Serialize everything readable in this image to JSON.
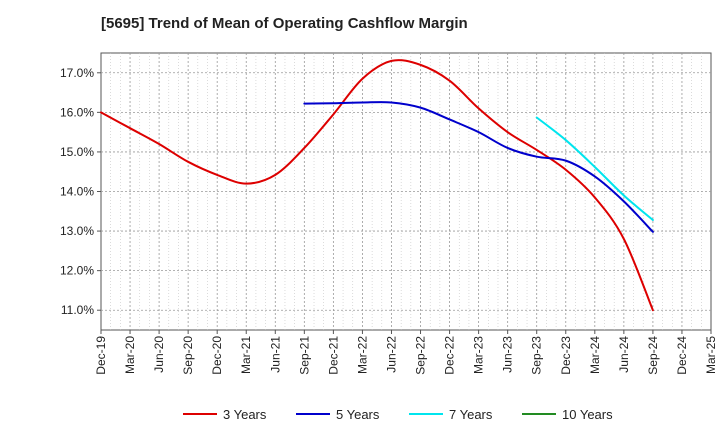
{
  "chart_data": {
    "type": "line",
    "title": "[5695]  Trend of Mean of Operating Cashflow Margin",
    "xlabel": "",
    "ylabel": "",
    "ylim": [
      10.5,
      17.5
    ],
    "y_ticks": [
      11.0,
      12.0,
      13.0,
      14.0,
      15.0,
      16.0,
      17.0
    ],
    "y_tick_labels": [
      "11.0%",
      "12.0%",
      "13.0%",
      "14.0%",
      "15.0%",
      "16.0%",
      "17.0%"
    ],
    "categories": [
      "Dec-19",
      "Mar-20",
      "Jun-20",
      "Sep-20",
      "Dec-20",
      "Mar-21",
      "Jun-21",
      "Sep-21",
      "Dec-21",
      "Mar-22",
      "Jun-22",
      "Sep-22",
      "Dec-22",
      "Mar-23",
      "Jun-23",
      "Sep-23",
      "Dec-23",
      "Mar-24",
      "Jun-24",
      "Sep-24",
      "Dec-24",
      "Mar-25"
    ],
    "x_tick_labels": [
      "Dec-19",
      "Mar-20",
      "Jun-20",
      "Sep-20",
      "Dec-20",
      "Mar-21",
      "Jun-21",
      "Sep-21",
      "Dec-21",
      "Mar-22",
      "Jun-22",
      "Sep-22",
      "Dec-22",
      "Mar-23",
      "Jun-23",
      "Sep-23",
      "Dec-23",
      "Mar-24",
      "Jun-24",
      "Sep-24",
      "Dec-24",
      "Mar-25"
    ],
    "grid": true,
    "legend_position": "bottom",
    "series": [
      {
        "name": "3 Years",
        "color": "#dd0000",
        "values": [
          16.0,
          15.6,
          15.2,
          14.75,
          14.42,
          14.2,
          14.42,
          15.1,
          15.95,
          16.85,
          17.3,
          17.2,
          16.8,
          16.1,
          15.5,
          15.05,
          14.55,
          13.85,
          12.8,
          11.0,
          null,
          null
        ]
      },
      {
        "name": "5 Years",
        "color": "#0000cc",
        "values": [
          null,
          null,
          null,
          null,
          null,
          null,
          null,
          16.22,
          16.23,
          16.25,
          16.25,
          16.12,
          15.82,
          15.5,
          15.1,
          14.88,
          14.78,
          14.38,
          13.75,
          12.98,
          null,
          null
        ]
      },
      {
        "name": "7 Years",
        "color": "#00e5ee",
        "values": [
          null,
          null,
          null,
          null,
          null,
          null,
          null,
          null,
          null,
          null,
          null,
          null,
          null,
          null,
          null,
          15.87,
          15.3,
          14.62,
          13.9,
          13.28,
          null,
          null
        ]
      },
      {
        "name": "10 Years",
        "color": "#228b22",
        "values": [
          null,
          null,
          null,
          null,
          null,
          null,
          null,
          null,
          null,
          null,
          null,
          null,
          null,
          null,
          null,
          null,
          null,
          null,
          null,
          null,
          null,
          null
        ]
      }
    ]
  }
}
